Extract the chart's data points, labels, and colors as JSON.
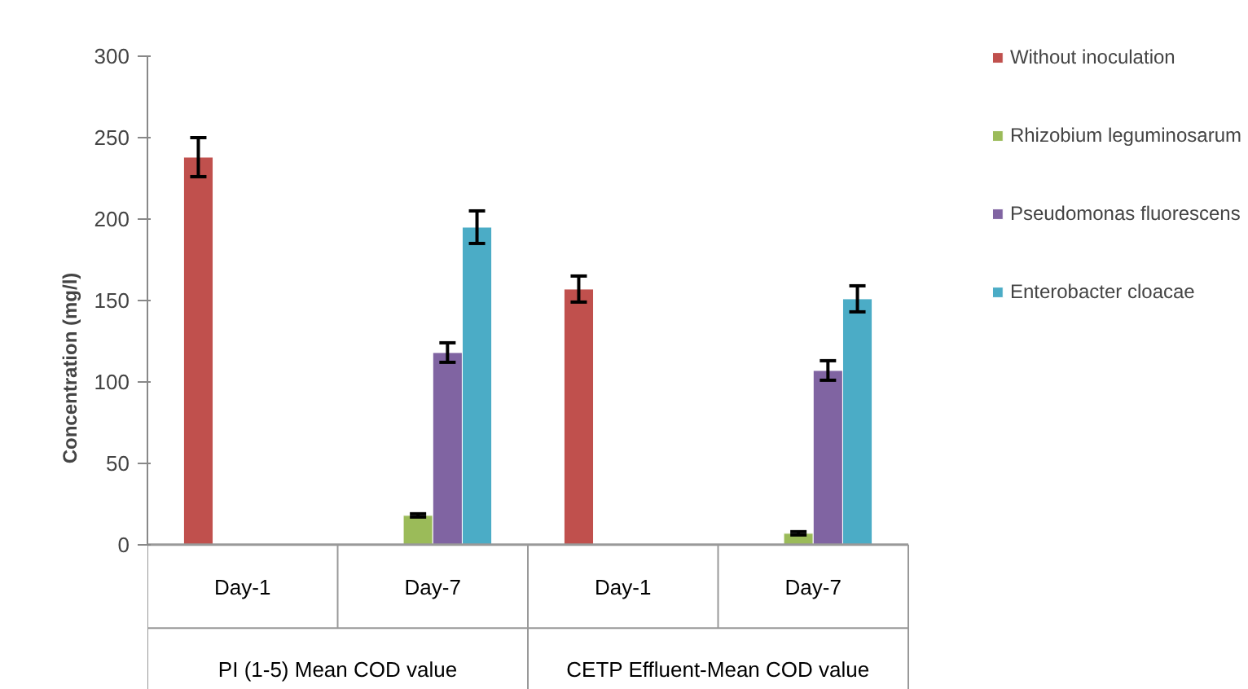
{
  "chart_data": {
    "type": "bar",
    "ylabel": "Concentration (mg/l)",
    "categories": [
      "Day-1",
      "Day-7",
      "Day-1",
      "Day-7"
    ],
    "annotations": [
      "PI (1-5) Mean COD value",
      "CETP Effluent-Mean COD value"
    ],
    "series": [
      {
        "name": "Without inoculation",
        "color": "#c0504d",
        "values": [
          238,
          null,
          157,
          null
        ],
        "errors": [
          12,
          null,
          8,
          null
        ]
      },
      {
        "name": "Rhizobium leguminosarum",
        "color": "#9bbb59",
        "values": [
          null,
          18,
          null,
          7
        ],
        "errors": [
          null,
          1,
          null,
          1
        ]
      },
      {
        "name": "Pseudomonas fluorescens",
        "color": "#8064a2",
        "values": [
          null,
          118,
          null,
          107
        ],
        "errors": [
          null,
          6,
          null,
          6
        ]
      },
      {
        "name": "Enterobacter cloacae",
        "color": "#4bacc6",
        "values": [
          null,
          195,
          null,
          151
        ],
        "errors": [
          null,
          10,
          null,
          8
        ]
      }
    ],
    "ylim": [
      0,
      300
    ],
    "yticks": [
      0,
      50,
      100,
      150,
      200,
      250,
      300
    ],
    "grid": false,
    "legend": "right"
  }
}
